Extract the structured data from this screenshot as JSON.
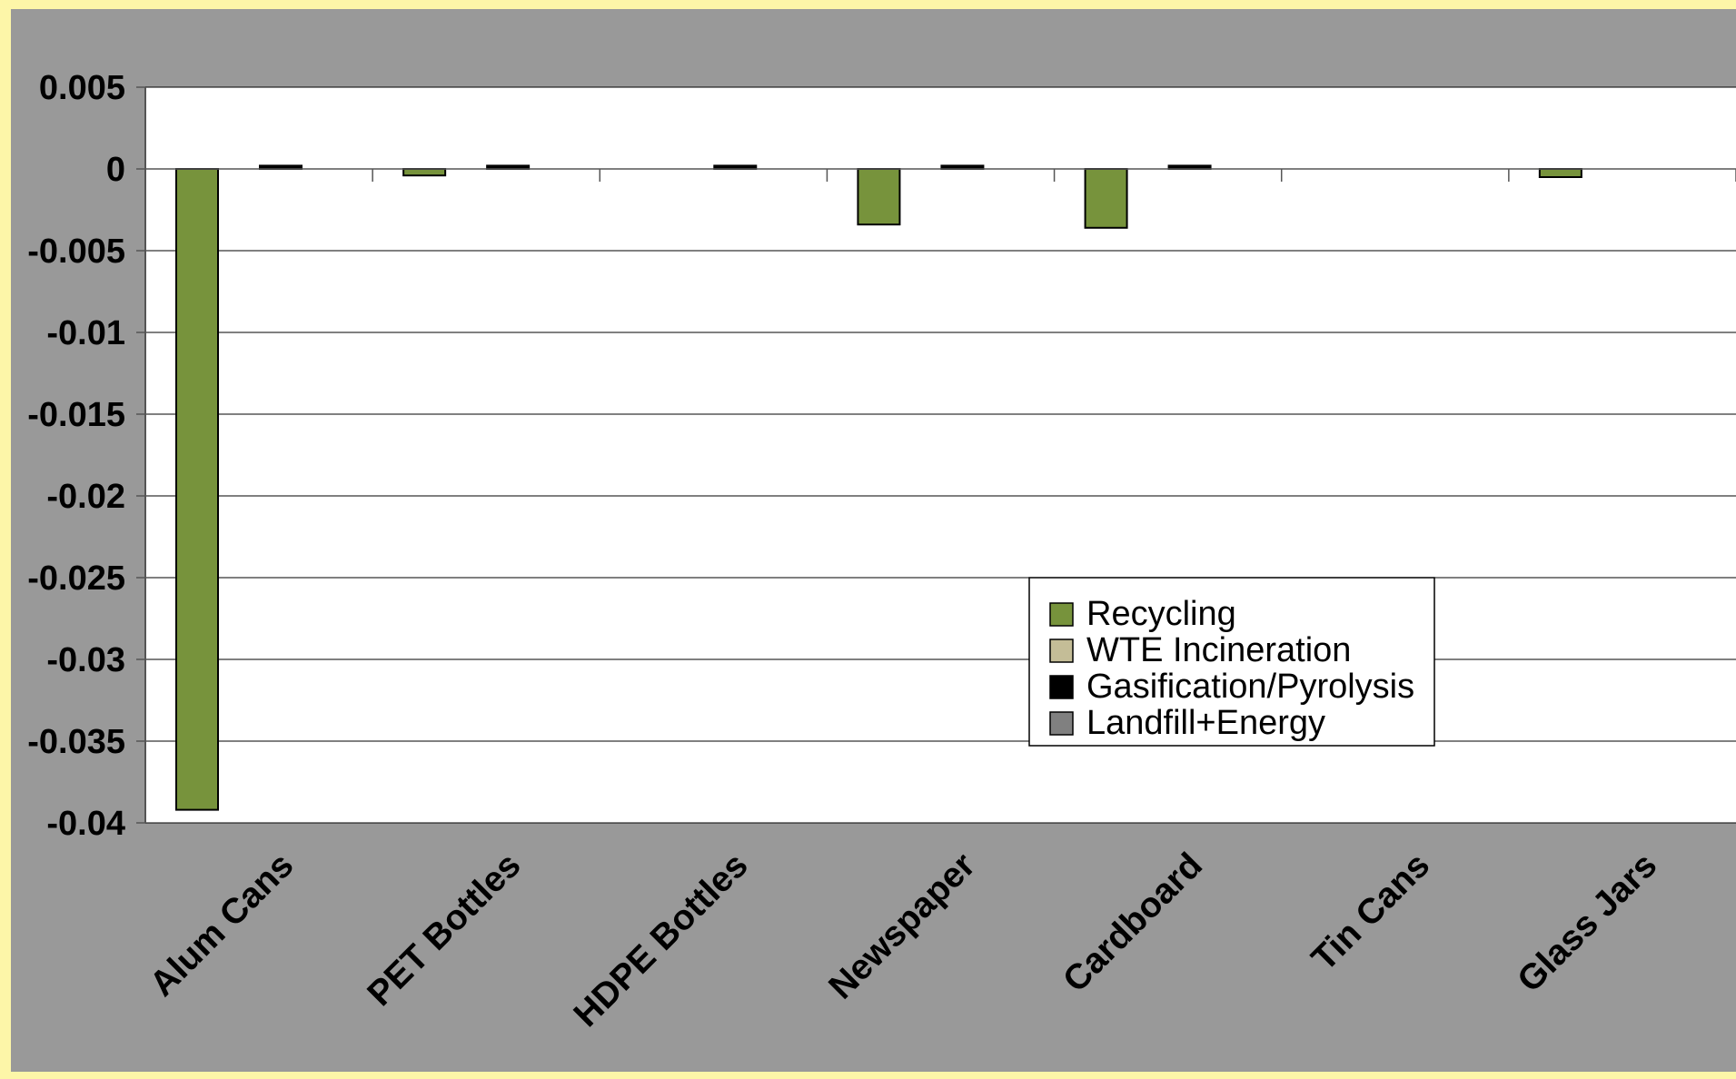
{
  "chart_data": {
    "type": "bar",
    "categories": [
      "Alum Cans",
      "PET Bottles",
      "HDPE Bottles",
      "Newspaper",
      "Cardboard",
      "Tin Cans",
      "Glass Jars"
    ],
    "series": [
      {
        "name": "Recycling",
        "color": "#77933c",
        "values": [
          -0.0392,
          -0.0004,
          0.0,
          -0.0034,
          -0.0036,
          0.0,
          -0.0005
        ]
      },
      {
        "name": "WTE Incineration",
        "color": "#c4bd97",
        "values": [
          0,
          0,
          0,
          0,
          0,
          0,
          0
        ]
      },
      {
        "name": "Gasification/Pyrolysis",
        "color": "#000000",
        "values": [
          0.0002,
          0.0002,
          0.0002,
          0.0002,
          0.0002,
          0,
          0
        ]
      },
      {
        "name": "Landfill+Energy",
        "color": "#808080",
        "values": [
          0,
          0,
          0,
          0,
          0,
          0,
          0
        ]
      }
    ],
    "yticks": [
      "0.005",
      "0",
      "-0.005",
      "-0.01",
      "-0.015",
      "-0.02",
      "-0.025",
      "-0.03",
      "-0.035",
      "-0.04"
    ],
    "ylim": [
      -0.04,
      0.005
    ],
    "grid": true,
    "legend_position": "bottom-right"
  }
}
